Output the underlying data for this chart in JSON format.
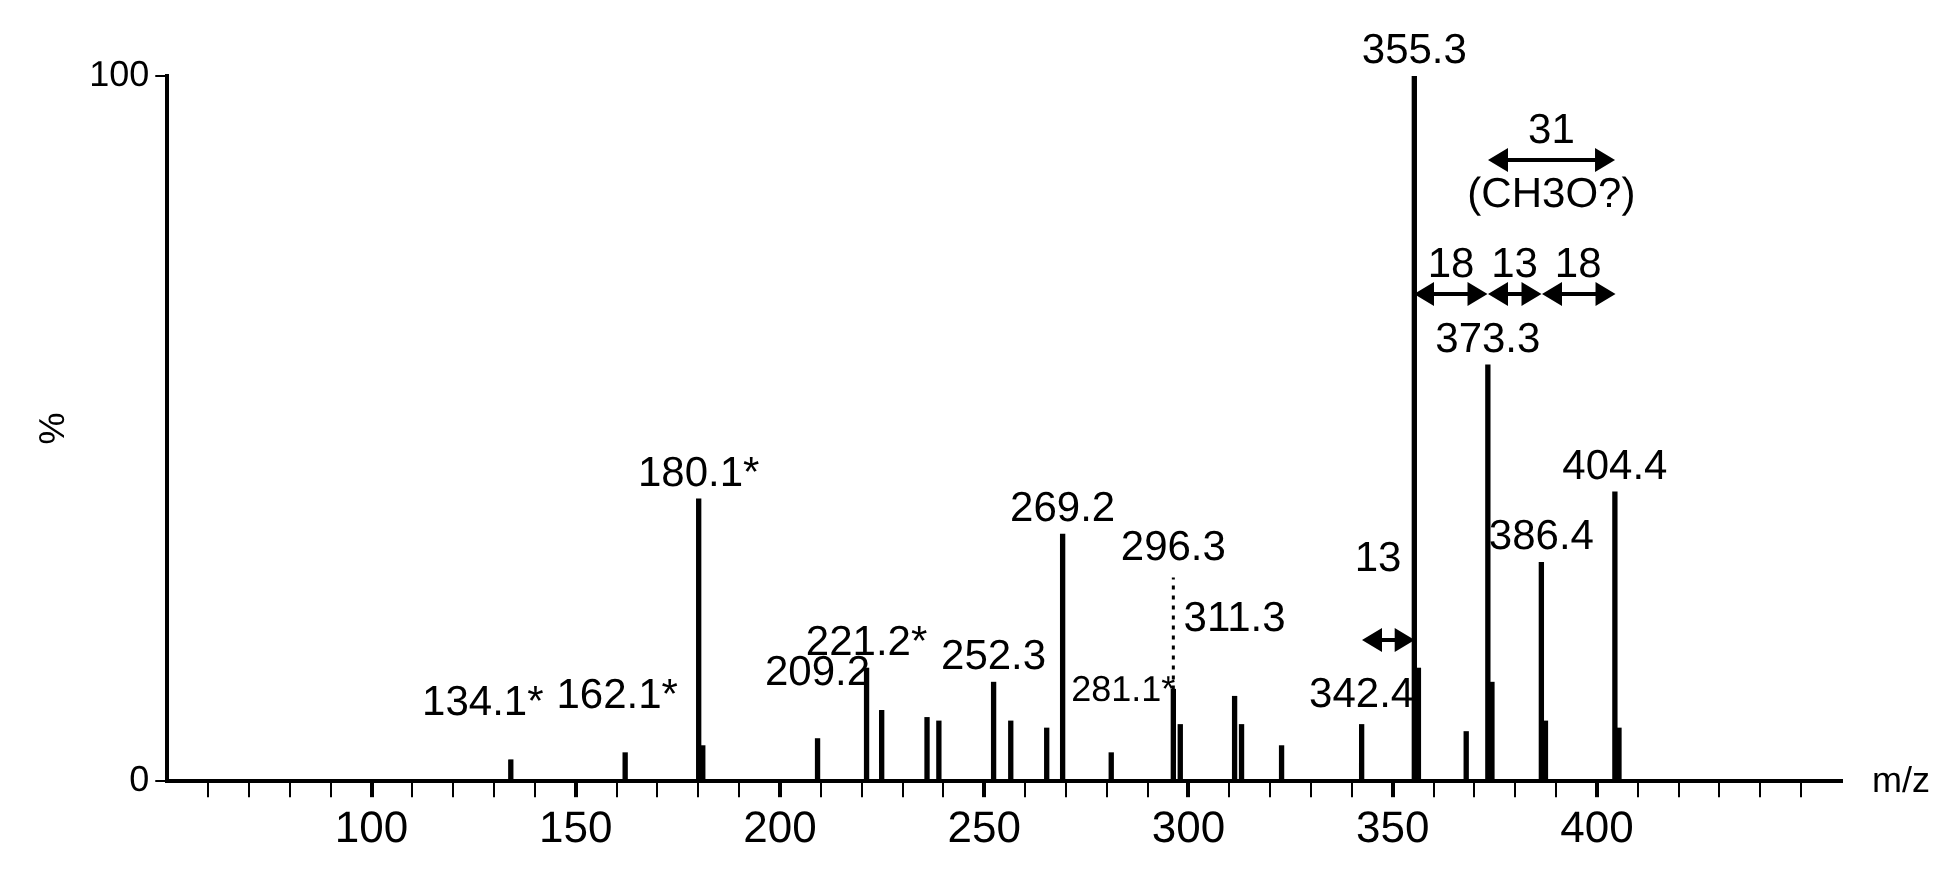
{
  "chart_data": {
    "type": "bar",
    "xlabel": "m/z",
    "ylabel": "%",
    "xlim": [
      50,
      460
    ],
    "ylim": [
      0,
      100
    ],
    "xticks": [
      {
        "value": 60,
        "label": null
      },
      {
        "value": 70,
        "label": null
      },
      {
        "value": 80,
        "label": null
      },
      {
        "value": 90,
        "label": null
      },
      100,
      {
        "value": 110,
        "label": null
      },
      {
        "value": 120,
        "label": null
      },
      {
        "value": 130,
        "label": null
      },
      {
        "value": 140,
        "label": null
      },
      150,
      {
        "value": 160,
        "label": null
      },
      {
        "value": 170,
        "label": null
      },
      {
        "value": 180,
        "label": null
      },
      {
        "value": 190,
        "label": null
      },
      200,
      {
        "value": 210,
        "label": null
      },
      {
        "value": 220,
        "label": null
      },
      {
        "value": 230,
        "label": null
      },
      {
        "value": 240,
        "label": null
      },
      250,
      {
        "value": 260,
        "label": null
      },
      {
        "value": 270,
        "label": null
      },
      {
        "value": 280,
        "label": null
      },
      {
        "value": 290,
        "label": null
      },
      300,
      {
        "value": 310,
        "label": null
      },
      {
        "value": 320,
        "label": null
      },
      {
        "value": 330,
        "label": null
      },
      {
        "value": 340,
        "label": null
      },
      350,
      {
        "value": 360,
        "label": null
      },
      {
        "value": 370,
        "label": null
      },
      {
        "value": 380,
        "label": null
      },
      {
        "value": 390,
        "label": null
      },
      400,
      {
        "value": 410,
        "label": null
      },
      {
        "value": 420,
        "label": null
      },
      {
        "value": 430,
        "label": null
      },
      {
        "value": 440,
        "label": null
      },
      {
        "value": 450,
        "label": null
      }
    ],
    "yticks": [
      0,
      100
    ],
    "grid": false,
    "legend": false,
    "series": [
      {
        "color": "#000000",
        "x": [
          134.1,
          162.1,
          180.1,
          181.1,
          209.2,
          221.2,
          224.9,
          236,
          238.9,
          252.3,
          256.5,
          265.3,
          269.2,
          281.1,
          296.3,
          298,
          311.3,
          313,
          322.8,
          342.4,
          355.3,
          356.3,
          368,
          373.3,
          374.3,
          386.4,
          387.4,
          404.4,
          405.4
        ],
        "values": [
          3,
          4,
          40,
          5,
          6,
          16,
          10,
          9,
          8.5,
          14,
          8.5,
          7.5,
          35,
          4,
          13,
          8,
          12,
          8,
          5,
          8,
          100,
          16,
          7,
          59,
          14,
          31,
          8.5,
          41,
          7.5
        ]
      }
    ],
    "annotations": [
      {
        "text": "134.1*",
        "x": 134.1,
        "y": 3
      },
      {
        "text": "162.1*",
        "x": 162.1,
        "y": 4
      },
      {
        "text": "180.1*",
        "x": 180.1,
        "y": 40
      },
      {
        "text": "209.2",
        "x": 209.2,
        "y": 6
      },
      {
        "text": "221.2*",
        "x": 221.2,
        "y": 16
      },
      {
        "text": "252.3",
        "x": 252.3,
        "y": 14
      },
      {
        "text": "269.2",
        "x": 269.2,
        "y": 35
      },
      {
        "text": "281.1*",
        "x": 281.1,
        "y": 4
      },
      {
        "text": "296.3",
        "x": 296.3,
        "y": 13
      },
      {
        "text": "311.3",
        "x": 311.3,
        "y": 12
      },
      {
        "text": "342.4",
        "x": 342.4,
        "y": 8
      },
      {
        "text": "355.3",
        "x": 355.3,
        "y": 100
      },
      {
        "text": "373.3",
        "x": 373.3,
        "y": 59
      },
      {
        "text": "386.4",
        "x": 386.4,
        "y": 31
      },
      {
        "text": "404.4",
        "x": 404.4,
        "y": 41
      },
      "13",
      "18",
      "13",
      "18",
      "31",
      "(CH3O?)"
    ]
  }
}
